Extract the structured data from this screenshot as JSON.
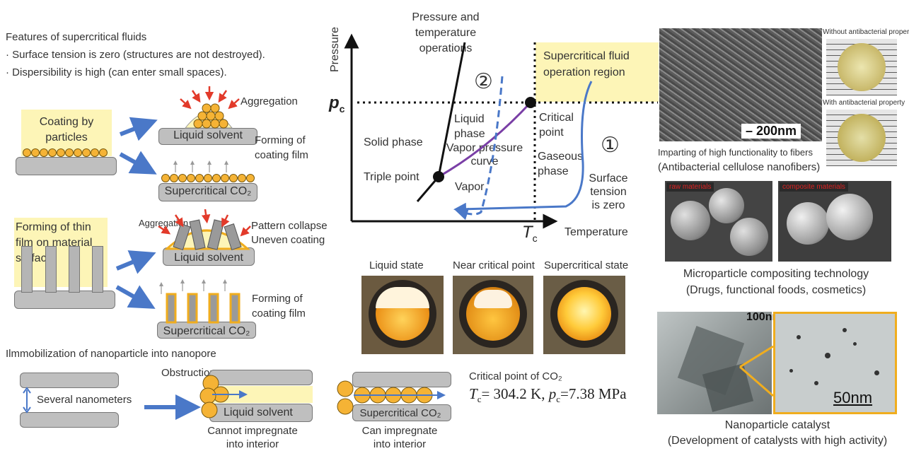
{
  "features": {
    "title": "Features of supercritical fluids",
    "bullets": [
      "· Surface tension is zero (structures are not destroyed).",
      "· Dispersibility is high (can enter small spaces)."
    ]
  },
  "coating": {
    "box_label": "Coating by\nparticles",
    "aggregation": "Aggregation",
    "liquid_solvent": "Liquid solvent",
    "forming": "Forming of\ncoating film",
    "supercritical_co2": "Supercritical CO₂"
  },
  "thinfilm": {
    "box_label": "Forming of thin\nfilm on material\nsurface",
    "aggregation": "Aggregation",
    "pattern_collapse": "Pattern collapse\nUneven coating",
    "liquid_solvent": "Liquid solvent",
    "forming": "Forming of\ncoating film",
    "supercritical_co2": "Supercritical CO₂"
  },
  "nanopore": {
    "title": "Ilmmobilization of nanoparticle into nanopore",
    "several": "Several nanometers",
    "obstruction": "Obstruction",
    "liquid_solvent": "Liquid solvent",
    "cannot": "Cannot impregnate\ninto interior",
    "supercritical_co2": "Supercritical CO₂",
    "can": "Can impregnate\ninto interior"
  },
  "phase": {
    "top_label": "Pressure and\ntemperature\noperations",
    "y_axis": "Pressure",
    "x_axis": "Temperature",
    "pc": "p",
    "pc_sub": "c",
    "tc": "T",
    "tc_sub": "c",
    "sc_region": "Supercritical fluid\noperation region",
    "liquid_phase": "Liquid\nphase",
    "critical_point": "Critical\npoint",
    "solid_phase": "Solid phase",
    "vapor_pressure": "Vapor pressure\ncurve",
    "gaseous": "Gaseous\nphase",
    "triple_point": "Triple point",
    "vapor": "Vapor",
    "surface_tension": "Surface\ntension\nis zero",
    "num1": "①",
    "num2": "②"
  },
  "states": {
    "labels": [
      "Liquid state",
      "Near critical point",
      "Supercritical state"
    ]
  },
  "critical": {
    "title": "Critical point of CO₂",
    "values": "T꜀= 304.2 K, p꜀=7.38 MPa",
    "tc_text": "T",
    "tc_val": "= 304.2 K, ",
    "pc_text": "p",
    "pc_val": "=7.38 MPa",
    "sub": "c"
  },
  "right": {
    "scale_200": "– 200nm",
    "without": "Without antibacterial property",
    "with": "With antibacterial property",
    "fibers_1": "Imparting of high functionality to fibers",
    "fibers_2": "(Antibacterial cellulose nanofibers)",
    "raw": "raw materials",
    "composite": "composite materials",
    "micro_1": "Microparticle compositing technology",
    "micro_2": "(Drugs, functional foods, cosmetics)",
    "scale_100": "100nm",
    "scale_50": "50nm",
    "nano_1": "Nanoparticle catalyst",
    "nano_2": "(Development of catalysts with high activity)"
  },
  "colors": {
    "blue_arrow": "#4a78c8",
    "red_arrow": "#e23a2a",
    "particle": "#f5b335",
    "highlight": "#fdf5b7",
    "purple_curve": "#7a3fa6"
  }
}
